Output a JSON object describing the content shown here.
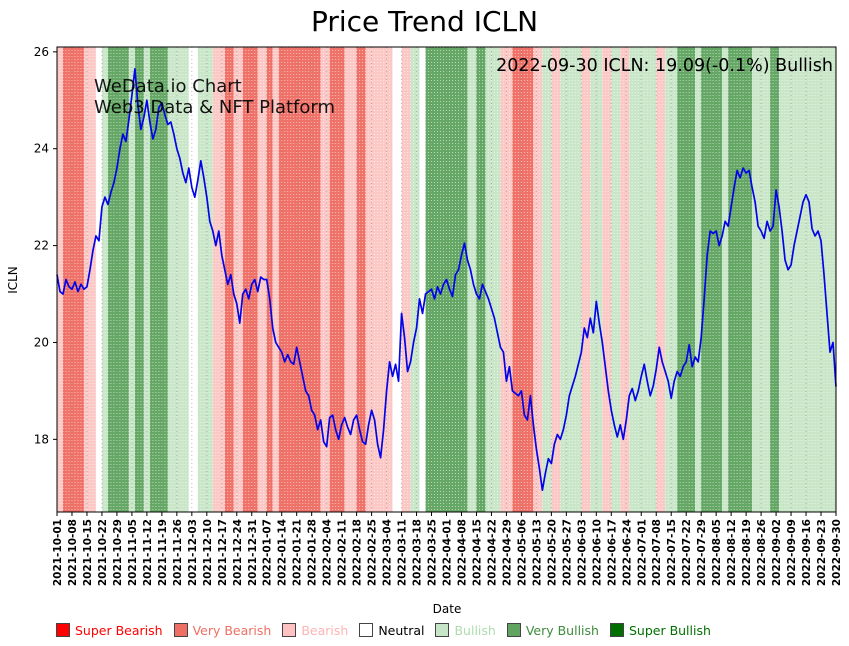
{
  "chart_data": {
    "type": "line",
    "title": "Price Trend ICLN",
    "xlabel": "Date",
    "ylabel": "ICLN",
    "annotation": "2022-09-30 ICLN: 19.09(-0.1%) Bullish",
    "watermark": [
      "WeData.io Chart",
      "Web3 Data & NFT Platform"
    ],
    "ylim": [
      16.5,
      26.1
    ],
    "yticks": [
      18,
      20,
      22,
      24,
      26
    ],
    "grid": "dotted-vertical-at-ticks",
    "legend_position": "below-axis",
    "x_tick_step_days": 5,
    "x_tick_labels": [
      "2021-10-01",
      "2021-10-08",
      "2021-10-15",
      "2021-10-22",
      "2021-10-29",
      "2021-11-05",
      "2021-11-12",
      "2021-11-19",
      "2021-11-26",
      "2021-12-03",
      "2021-12-10",
      "2021-12-17",
      "2021-12-24",
      "2021-12-31",
      "2022-01-07",
      "2022-01-14",
      "2022-01-21",
      "2022-01-28",
      "2022-02-04",
      "2022-02-11",
      "2022-02-18",
      "2022-02-25",
      "2022-03-04",
      "2022-03-11",
      "2022-03-18",
      "2022-03-25",
      "2022-04-01",
      "2022-04-08",
      "2022-04-15",
      "2022-04-22",
      "2022-04-29",
      "2022-05-06",
      "2022-05-13",
      "2022-05-20",
      "2022-05-27",
      "2022-06-03",
      "2022-06-10",
      "2022-06-17",
      "2022-06-24",
      "2022-07-01",
      "2022-07-08",
      "2022-07-15",
      "2022-07-22",
      "2022-07-29",
      "2022-08-05",
      "2022-08-12",
      "2022-08-19",
      "2022-08-26",
      "2022-09-02",
      "2022-09-09",
      "2022-09-16",
      "2022-09-23",
      "2022-09-30"
    ],
    "series": [
      {
        "name": "ICLN",
        "color": "#0404e8",
        "values": [
          21.4,
          21.05,
          21.0,
          21.3,
          21.15,
          21.1,
          21.25,
          21.05,
          21.2,
          21.1,
          21.15,
          21.5,
          21.9,
          22.2,
          22.1,
          22.8,
          23.0,
          22.85,
          23.1,
          23.3,
          23.6,
          24.0,
          24.3,
          24.15,
          24.6,
          25.1,
          25.65,
          24.9,
          24.4,
          24.65,
          25.0,
          24.55,
          24.2,
          24.4,
          24.85,
          24.95,
          24.7,
          24.5,
          24.55,
          24.3,
          24.0,
          23.8,
          23.5,
          23.3,
          23.6,
          23.2,
          23.0,
          23.35,
          23.75,
          23.4,
          23.0,
          22.5,
          22.3,
          22.0,
          22.3,
          21.8,
          21.5,
          21.2,
          21.4,
          21.0,
          20.8,
          20.4,
          21.0,
          21.1,
          20.9,
          21.2,
          21.3,
          21.05,
          21.35,
          21.3,
          21.3,
          20.9,
          20.3,
          20.0,
          19.9,
          19.8,
          19.6,
          19.75,
          19.6,
          19.55,
          19.9,
          19.6,
          19.3,
          19.0,
          18.9,
          18.6,
          18.5,
          18.2,
          18.4,
          17.95,
          17.85,
          18.45,
          18.5,
          18.2,
          18.0,
          18.3,
          18.45,
          18.25,
          18.1,
          18.4,
          18.5,
          18.2,
          17.95,
          17.9,
          18.3,
          18.6,
          18.4,
          17.9,
          17.62,
          18.2,
          19.0,
          19.6,
          19.3,
          19.55,
          19.2,
          20.6,
          20.1,
          19.4,
          19.6,
          20.0,
          20.3,
          20.9,
          20.6,
          21.0,
          21.05,
          21.1,
          20.9,
          21.15,
          21.0,
          21.2,
          21.3,
          21.1,
          20.95,
          21.4,
          21.5,
          21.8,
          22.05,
          21.7,
          21.5,
          21.2,
          21.0,
          20.9,
          21.2,
          21.05,
          20.9,
          20.7,
          20.5,
          20.2,
          19.9,
          19.8,
          19.2,
          19.5,
          19.0,
          18.95,
          18.9,
          19.0,
          18.5,
          18.4,
          18.9,
          18.3,
          17.8,
          17.4,
          16.95,
          17.3,
          17.6,
          17.5,
          17.9,
          18.1,
          18.0,
          18.2,
          18.5,
          18.9,
          19.1,
          19.3,
          19.55,
          19.8,
          20.3,
          20.1,
          20.5,
          20.2,
          20.85,
          20.4,
          20.0,
          19.5,
          19.0,
          18.6,
          18.3,
          18.05,
          18.3,
          18.0,
          18.4,
          18.9,
          19.05,
          18.8,
          19.0,
          19.3,
          19.55,
          19.2,
          18.9,
          19.1,
          19.45,
          19.9,
          19.6,
          19.4,
          19.2,
          18.85,
          19.2,
          19.4,
          19.3,
          19.5,
          19.6,
          19.95,
          19.5,
          19.7,
          19.6,
          20.1,
          20.9,
          21.8,
          22.3,
          22.25,
          22.3,
          22.0,
          22.2,
          22.5,
          22.4,
          22.8,
          23.2,
          23.55,
          23.4,
          23.6,
          23.5,
          23.55,
          23.2,
          22.9,
          22.4,
          22.3,
          22.15,
          22.5,
          22.3,
          22.4,
          23.15,
          22.8,
          22.3,
          21.7,
          21.5,
          21.6,
          22.0,
          22.3,
          22.6,
          22.9,
          23.05,
          22.9,
          22.35,
          22.2,
          22.3,
          22.1,
          21.4,
          20.6,
          19.8,
          20.0,
          19.09
        ]
      }
    ],
    "sentiment_colors": {
      "super-bearish": "#ff0000",
      "very-bearish": "#ef7168",
      "bearish": "#fbc8c6",
      "neutral": "#ffffff",
      "bullish": "#c9e6c9",
      "very-bullish": "#65a765",
      "super-bullish": "#007000"
    },
    "background_bands": [
      {
        "start": 0,
        "end": 2,
        "sentiment": "bearish"
      },
      {
        "start": 2,
        "end": 9,
        "sentiment": "very-bearish"
      },
      {
        "start": 9,
        "end": 13,
        "sentiment": "bearish"
      },
      {
        "start": 13,
        "end": 15,
        "sentiment": "neutral"
      },
      {
        "start": 15,
        "end": 17,
        "sentiment": "bullish"
      },
      {
        "start": 17,
        "end": 24,
        "sentiment": "very-bullish"
      },
      {
        "start": 24,
        "end": 26,
        "sentiment": "bullish"
      },
      {
        "start": 26,
        "end": 29,
        "sentiment": "very-bullish"
      },
      {
        "start": 29,
        "end": 31,
        "sentiment": "bullish"
      },
      {
        "start": 31,
        "end": 37,
        "sentiment": "very-bullish"
      },
      {
        "start": 37,
        "end": 44,
        "sentiment": "bullish"
      },
      {
        "start": 44,
        "end": 47,
        "sentiment": "neutral"
      },
      {
        "start": 47,
        "end": 52,
        "sentiment": "bullish"
      },
      {
        "start": 52,
        "end": 56,
        "sentiment": "bearish"
      },
      {
        "start": 56,
        "end": 59,
        "sentiment": "very-bearish"
      },
      {
        "start": 59,
        "end": 62,
        "sentiment": "bearish"
      },
      {
        "start": 62,
        "end": 67,
        "sentiment": "very-bearish"
      },
      {
        "start": 67,
        "end": 70,
        "sentiment": "bearish"
      },
      {
        "start": 70,
        "end": 72,
        "sentiment": "very-bearish"
      },
      {
        "start": 72,
        "end": 74,
        "sentiment": "bearish"
      },
      {
        "start": 74,
        "end": 88,
        "sentiment": "very-bearish"
      },
      {
        "start": 88,
        "end": 91,
        "sentiment": "bearish"
      },
      {
        "start": 91,
        "end": 96,
        "sentiment": "very-bearish"
      },
      {
        "start": 96,
        "end": 100,
        "sentiment": "bearish"
      },
      {
        "start": 100,
        "end": 103,
        "sentiment": "very-bearish"
      },
      {
        "start": 103,
        "end": 112,
        "sentiment": "bearish"
      },
      {
        "start": 112,
        "end": 115,
        "sentiment": "neutral"
      },
      {
        "start": 115,
        "end": 118,
        "sentiment": "bearish"
      },
      {
        "start": 118,
        "end": 121,
        "sentiment": "bullish"
      },
      {
        "start": 121,
        "end": 123,
        "sentiment": "neutral"
      },
      {
        "start": 123,
        "end": 137,
        "sentiment": "very-bullish"
      },
      {
        "start": 137,
        "end": 140,
        "sentiment": "bullish"
      },
      {
        "start": 140,
        "end": 143,
        "sentiment": "very-bullish"
      },
      {
        "start": 143,
        "end": 148,
        "sentiment": "bullish"
      },
      {
        "start": 148,
        "end": 152,
        "sentiment": "bearish"
      },
      {
        "start": 152,
        "end": 159,
        "sentiment": "very-bearish"
      },
      {
        "start": 159,
        "end": 162,
        "sentiment": "bearish"
      },
      {
        "start": 162,
        "end": 165,
        "sentiment": "bullish"
      },
      {
        "start": 165,
        "end": 168,
        "sentiment": "bearish"
      },
      {
        "start": 168,
        "end": 175,
        "sentiment": "bullish"
      },
      {
        "start": 175,
        "end": 178,
        "sentiment": "bearish"
      },
      {
        "start": 178,
        "end": 182,
        "sentiment": "bullish"
      },
      {
        "start": 182,
        "end": 185,
        "sentiment": "bearish"
      },
      {
        "start": 185,
        "end": 188,
        "sentiment": "bullish"
      },
      {
        "start": 188,
        "end": 191,
        "sentiment": "bearish"
      },
      {
        "start": 191,
        "end": 200,
        "sentiment": "bullish"
      },
      {
        "start": 200,
        "end": 203,
        "sentiment": "bearish"
      },
      {
        "start": 203,
        "end": 207,
        "sentiment": "bullish"
      },
      {
        "start": 207,
        "end": 213,
        "sentiment": "very-bullish"
      },
      {
        "start": 213,
        "end": 215,
        "sentiment": "bullish"
      },
      {
        "start": 215,
        "end": 222,
        "sentiment": "very-bullish"
      },
      {
        "start": 222,
        "end": 224,
        "sentiment": "bullish"
      },
      {
        "start": 224,
        "end": 232,
        "sentiment": "very-bullish"
      },
      {
        "start": 232,
        "end": 238,
        "sentiment": "bullish"
      },
      {
        "start": 238,
        "end": 241,
        "sentiment": "very-bullish"
      },
      {
        "start": 241,
        "end": 261,
        "sentiment": "bullish"
      }
    ],
    "legend": [
      {
        "label": "Super Bearish",
        "swatch": "#ff0000",
        "text_color": "#fe0000"
      },
      {
        "label": "Very Bearish",
        "swatch": "#ee6f63",
        "text_color": "#ee6f63"
      },
      {
        "label": "Bearish",
        "swatch": "#ffc1c1",
        "text_color": "#ffb3b3"
      },
      {
        "label": "Neutral",
        "swatch": "#ffffff",
        "text_color": "#000000"
      },
      {
        "label": "Bullish",
        "swatch": "#c7e5c7",
        "text_color": "#aedcae"
      },
      {
        "label": "Very Bullish",
        "swatch": "#61a361",
        "text_color": "#3d8b3d"
      },
      {
        "label": "Super Bullish",
        "swatch": "#016e01",
        "text_color": "#017001"
      }
    ]
  }
}
